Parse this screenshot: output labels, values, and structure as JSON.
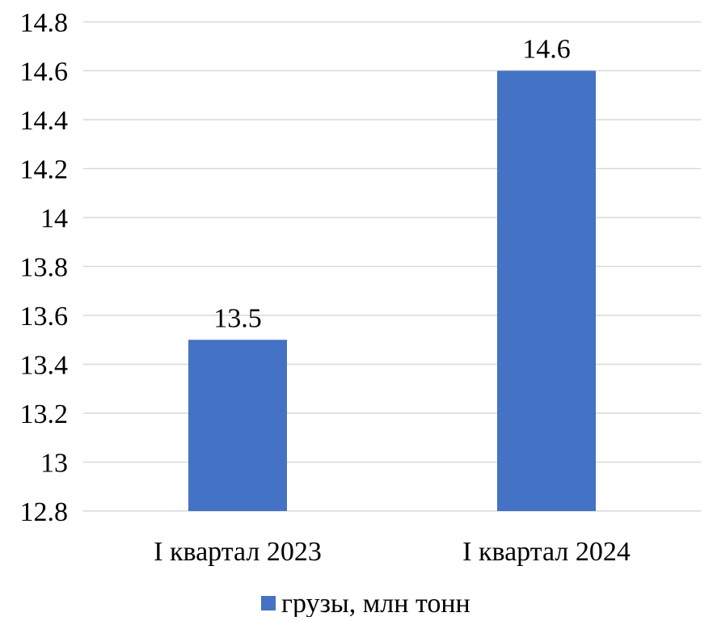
{
  "chart_data": {
    "type": "bar",
    "categories": [
      "I квартал 2023",
      "I квартал 2024"
    ],
    "series": [
      {
        "name": "грузы, млн тонн",
        "values": [
          13.5,
          14.6
        ],
        "color": "#4472c4"
      }
    ],
    "data_labels": [
      "13.5",
      "14.6"
    ],
    "y_ticks": [
      "12.8",
      "13",
      "13.2",
      "13.4",
      "13.6",
      "13.8",
      "14",
      "14.2",
      "14.4",
      "14.6",
      "14.8"
    ],
    "ylim": [
      12.8,
      14.8
    ],
    "grid": true,
    "legend_position": "bottom"
  }
}
